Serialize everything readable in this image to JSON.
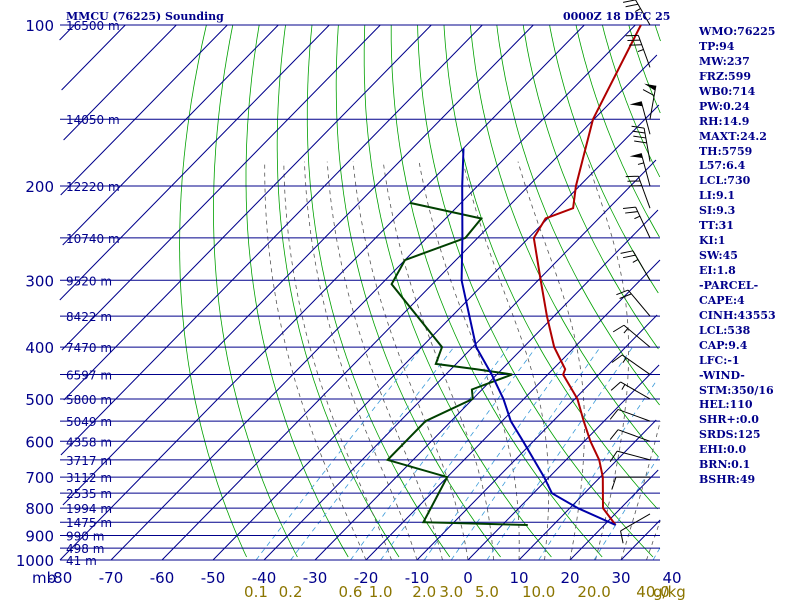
{
  "header": {
    "station_title": "MMCU (76225) Sounding",
    "datetime": "0000Z 18 DEC 25"
  },
  "stats": [
    "WMO:76225",
    "TP:94",
    "MW:237",
    "FRZ:599",
    "WB0:714",
    "PW:0.24",
    "RH:14.9",
    "MAXT:24.2",
    "TH:5759",
    "L57:6.4",
    "LCL:730",
    "LI:9.1",
    "SI:9.3",
    "TT:31",
    "KI:1",
    "SW:45",
    "EI:1.8",
    "-PARCEL-",
    "CAPE:4",
    "CINH:43553",
    "LCL:538",
    "CAP:9.4",
    "LFC:-1",
    "-WIND-",
    "STM:350/16",
    "HEL:110",
    "SHR+:0.0",
    "SRDS:125",
    "EHI:0.0",
    "BRN:0.1",
    "BSHR:49"
  ],
  "chart_data": {
    "type": "line",
    "chart_kind": "skew-T log-p sounding",
    "x_axis": {
      "label": "mb",
      "unit": "°C",
      "ticks": [
        -80,
        -70,
        -60,
        -50,
        -40,
        -30,
        -20,
        -10,
        0,
        10,
        20,
        30,
        40
      ],
      "tick_labels": [
        "-80",
        "-70",
        "-60",
        "-50",
        "-40",
        "-30",
        "-20",
        "-10",
        "0",
        "10",
        "20",
        "30",
        "40"
      ]
    },
    "y_axis": {
      "scale": "log",
      "unit": "mb",
      "range": [
        1000,
        100
      ],
      "ticks": [
        100,
        200,
        300,
        400,
        500,
        600,
        700,
        800,
        900,
        1000
      ],
      "tick_labels": [
        "100",
        "200",
        "300",
        "400",
        "500",
        "600",
        "700",
        "800",
        "900",
        "1000"
      ]
    },
    "height_labels": [
      {
        "p": 100,
        "label": "16500 m"
      },
      {
        "p": 150,
        "label": "14050 m"
      },
      {
        "p": 200,
        "label": "12220 m"
      },
      {
        "p": 250,
        "label": "10740 m"
      },
      {
        "p": 300,
        "label": "9520 m"
      },
      {
        "p": 350,
        "label": "8422 m"
      },
      {
        "p": 400,
        "label": "7470 m"
      },
      {
        "p": 450,
        "label": "6597 m"
      },
      {
        "p": 500,
        "label": "5800 m"
      },
      {
        "p": 550,
        "label": "5049 m"
      },
      {
        "p": 600,
        "label": "4358 m"
      },
      {
        "p": 650,
        "label": "3717 m"
      },
      {
        "p": 700,
        "label": "3112 m"
      },
      {
        "p": 750,
        "label": "2535 m"
      },
      {
        "p": 800,
        "label": "1994 m"
      },
      {
        "p": 850,
        "label": "1475 m"
      },
      {
        "p": 900,
        "label": "990 m"
      },
      {
        "p": 950,
        "label": "498 m"
      },
      {
        "p": 1000,
        "label": "41 m"
      }
    ],
    "mixing_ratio_labels": [
      "0.1",
      "0.2",
      "0.6",
      "1.0",
      "2.0",
      "3.0",
      "5.0",
      "10.0",
      "20.0",
      "40.0",
      "g/kg"
    ],
    "series": [
      {
        "key": "temperature",
        "color": "#b00000",
        "points": [
          {
            "p": 100,
            "t": -68.9
          },
          {
            "p": 150,
            "t": -60.2
          },
          {
            "p": 200,
            "t": -50.7
          },
          {
            "p": 220,
            "t": -47.0
          },
          {
            "p": 230,
            "t": -50.4
          },
          {
            "p": 250,
            "t": -49.0
          },
          {
            "p": 300,
            "t": -39.5
          },
          {
            "p": 350,
            "t": -31.4
          },
          {
            "p": 400,
            "t": -24.0
          },
          {
            "p": 440,
            "t": -17.6
          },
          {
            "p": 450,
            "t": -17.0
          },
          {
            "p": 500,
            "t": -9.5
          },
          {
            "p": 550,
            "t": -4.0
          },
          {
            "p": 600,
            "t": 1.2
          },
          {
            "p": 650,
            "t": 6.5
          },
          {
            "p": 700,
            "t": 10.5
          },
          {
            "p": 800,
            "t": 16.5
          },
          {
            "p": 860,
            "t": 22.2
          }
        ]
      },
      {
        "key": "dewpoint",
        "color": "#004000",
        "points": [
          {
            "p": 215,
            "t": -80.0
          },
          {
            "p": 230,
            "t": -63.0
          },
          {
            "p": 250,
            "t": -62.4
          },
          {
            "p": 275,
            "t": -70.0
          },
          {
            "p": 305,
            "t": -68.0
          },
          {
            "p": 400,
            "t": -46.0
          },
          {
            "p": 430,
            "t": -44.0
          },
          {
            "p": 440,
            "t": -35.0
          },
          {
            "p": 450,
            "t": -27.0
          },
          {
            "p": 480,
            "t": -32.0
          },
          {
            "p": 500,
            "t": -30.0
          },
          {
            "p": 550,
            "t": -35.0
          },
          {
            "p": 650,
            "t": -35.0
          },
          {
            "p": 700,
            "t": -20.0
          },
          {
            "p": 850,
            "t": -16.0
          },
          {
            "p": 860,
            "t": 5.0
          }
        ]
      },
      {
        "key": "parcel",
        "color": "#0000aa",
        "points": [
          {
            "p": 170,
            "t": -80.0
          },
          {
            "p": 200,
            "t": -73.0
          },
          {
            "p": 250,
            "t": -63.0
          },
          {
            "p": 300,
            "t": -55.0
          },
          {
            "p": 350,
            "t": -46.6
          },
          {
            "p": 400,
            "t": -39.3
          },
          {
            "p": 450,
            "t": -31.0
          },
          {
            "p": 500,
            "t": -24.0
          },
          {
            "p": 550,
            "t": -18.3
          },
          {
            "p": 600,
            "t": -12.0
          },
          {
            "p": 650,
            "t": -6.3
          },
          {
            "p": 700,
            "t": -1.0
          },
          {
            "p": 750,
            "t": 3.6
          },
          {
            "p": 800,
            "t": 11.6
          },
          {
            "p": 860,
            "t": 22.2
          }
        ]
      }
    ],
    "wind_barbs": [
      {
        "p": 100,
        "dir": 330,
        "kt": 35
      },
      {
        "p": 120,
        "dir": 340,
        "kt": 35
      },
      {
        "p": 150,
        "dir": 10,
        "kt": 60
      },
      {
        "p": 160,
        "dir": 345,
        "kt": 50
      },
      {
        "p": 180,
        "dir": 350,
        "kt": 40
      },
      {
        "p": 200,
        "dir": 345,
        "kt": 55
      },
      {
        "p": 220,
        "dir": 340,
        "kt": 30
      },
      {
        "p": 250,
        "dir": 335,
        "kt": 25
      },
      {
        "p": 300,
        "dir": 330,
        "kt": 25
      },
      {
        "p": 350,
        "dir": 320,
        "kt": 20
      },
      {
        "p": 400,
        "dir": 310,
        "kt": 15
      },
      {
        "p": 450,
        "dir": 305,
        "kt": 15
      },
      {
        "p": 500,
        "dir": 300,
        "kt": 15
      },
      {
        "p": 550,
        "dir": 290,
        "kt": 10
      },
      {
        "p": 600,
        "dir": 290,
        "kt": 10
      },
      {
        "p": 650,
        "dir": 285,
        "kt": 10
      },
      {
        "p": 700,
        "dir": 270,
        "kt": 10
      },
      {
        "p": 820,
        "dir": 240,
        "kt": 10
      }
    ],
    "colors": {
      "background": "#ffffff",
      "isobar": "#00008b",
      "isotherm": "#00008b",
      "dry_adiabat": "#00a000",
      "moist_adiabat": "#555555",
      "mixing_ratio": "#3a9ad9",
      "axis_text": "#00008b",
      "mixing_label": "#8b7500"
    }
  }
}
